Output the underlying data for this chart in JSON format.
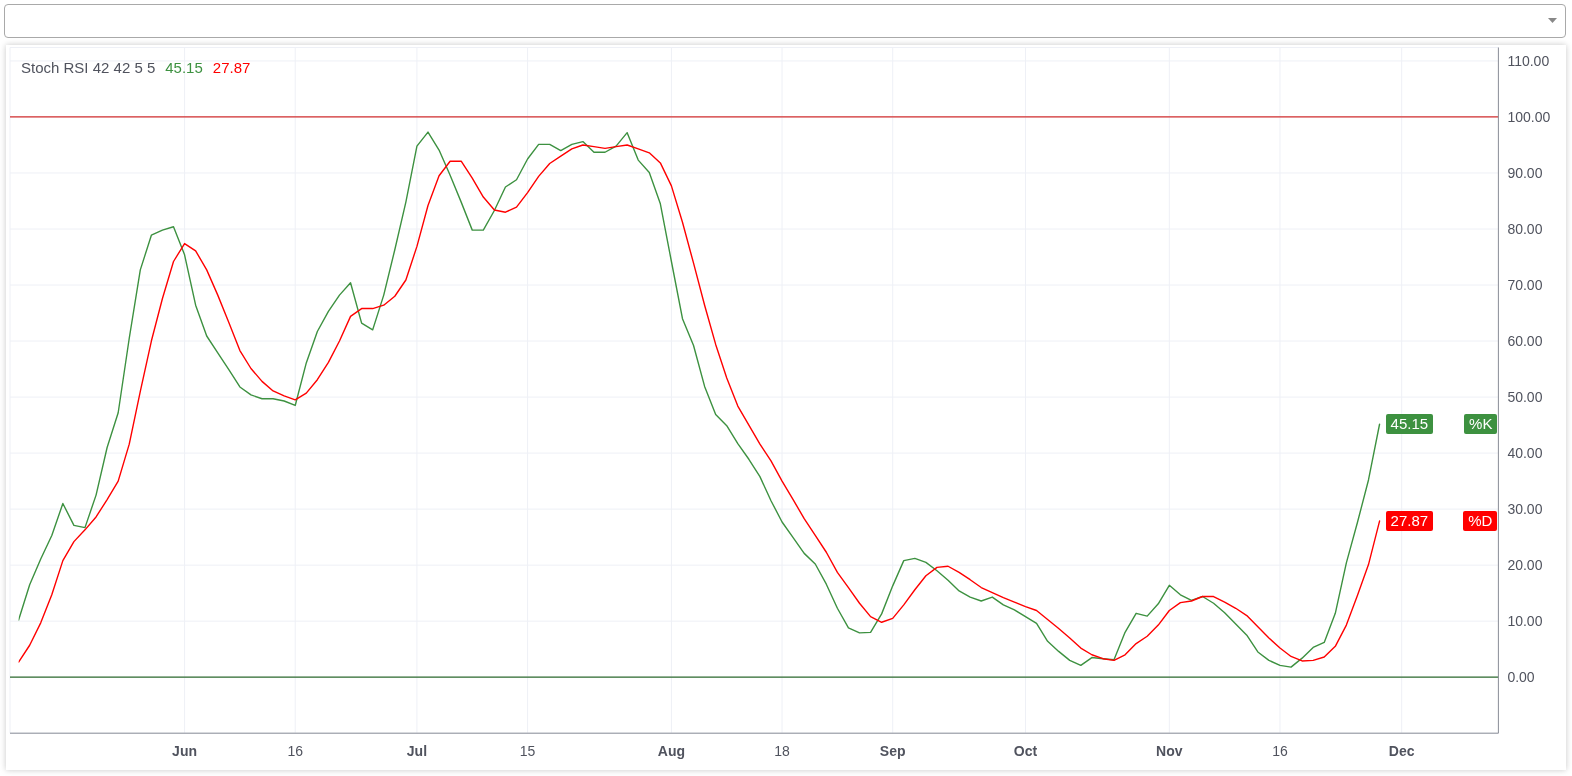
{
  "chart_data": {
    "type": "line",
    "title": "Stoch RSI 42 42 5 5",
    "categories": [
      null,
      null,
      null,
      null,
      null,
      null,
      null,
      null,
      null,
      null,
      null,
      null,
      null,
      null,
      null,
      "Jun",
      null,
      null,
      null,
      null,
      null,
      null,
      null,
      null,
      null,
      "16",
      null,
      null,
      null,
      null,
      null,
      null,
      null,
      null,
      null,
      null,
      "Jul",
      null,
      null,
      null,
      null,
      null,
      null,
      null,
      null,
      null,
      "15",
      null,
      null,
      null,
      null,
      null,
      null,
      null,
      null,
      null,
      null,
      null,
      null,
      "Aug",
      null,
      null,
      null,
      null,
      null,
      null,
      null,
      null,
      null,
      "18",
      null,
      null,
      null,
      null,
      null,
      null,
      null,
      null,
      null,
      "Sep",
      null,
      null,
      null,
      null,
      null,
      null,
      null,
      null,
      null,
      null,
      null,
      "Oct",
      null,
      null,
      null,
      null,
      null,
      null,
      null,
      null,
      null,
      null,
      null,
      null,
      "Nov",
      null,
      null,
      null,
      null,
      null,
      null,
      null,
      null,
      null,
      "16",
      null,
      null,
      null,
      null,
      null,
      null,
      null,
      null,
      null,
      null,
      "Dec",
      null,
      null,
      null,
      null,
      null,
      null,
      null,
      null
    ],
    "series": [
      {
        "name": "%K",
        "color": "#3d9140",
        "values": [
          10.2,
          16.5,
          21.1,
          25.3,
          31.0,
          27.1,
          26.7,
          32.5,
          41.0,
          47.2,
          60.5,
          72.7,
          78.9,
          79.8,
          80.4,
          75.4,
          66.4,
          60.9,
          57.9,
          54.9,
          51.8,
          50.4,
          49.7,
          49.7,
          49.3,
          48.5,
          56.1,
          61.7,
          65.3,
          68.2,
          70.4,
          63.2,
          62.0,
          68.2,
          76.3,
          84.8,
          94.8,
          97.3,
          94.1,
          89.6,
          84.8,
          79.8,
          79.8,
          83.3,
          87.5,
          88.8,
          92.5,
          95.1,
          95.1,
          94.0,
          95.1,
          95.6,
          93.7,
          93.7,
          94.8,
          97.2,
          92.3,
          90.1,
          84.5,
          74.2,
          64.0,
          59.2,
          51.9,
          46.9,
          44.9,
          41.7,
          38.9,
          35.8,
          31.5,
          27.7,
          24.9,
          22.1,
          20.2,
          16.6,
          12.3,
          8.8,
          7.9,
          8.0,
          11.3,
          16.3,
          20.8,
          21.2,
          20.5,
          19.0,
          17.3,
          15.4,
          14.3,
          13.6,
          14.3,
          12.9,
          12.0,
          10.8,
          9.6,
          6.4,
          4.6,
          3.0,
          2.1,
          3.5,
          3.3,
          3.1,
          8.0,
          11.4,
          10.9,
          13.1,
          16.4,
          14.7,
          13.7,
          14.4,
          13.2,
          11.5,
          9.5,
          7.5,
          4.5,
          3.0,
          2.1,
          1.8,
          3.4,
          5.3,
          6.2,
          11.4,
          20.4,
          27.6,
          35.2,
          45.15,
          null,
          null,
          null,
          null,
          null,
          null,
          null,
          null,
          null,
          null
        ],
        "value_labels": [
          null,
          null,
          null,
          null,
          null,
          null,
          null,
          null,
          null,
          null,
          null,
          null,
          null,
          null,
          null,
          null,
          null,
          null,
          null,
          null,
          null,
          null,
          null,
          null,
          null,
          null,
          null,
          null,
          null,
          null,
          null,
          null,
          null,
          null,
          null,
          null,
          null,
          null,
          null,
          null,
          null,
          null,
          null,
          null,
          null,
          null,
          null,
          null,
          null,
          null,
          null,
          null,
          null,
          null,
          null,
          null,
          null,
          null,
          null,
          null,
          null,
          null,
          null,
          null,
          null,
          null,
          null,
          null,
          null,
          null,
          null,
          null,
          null,
          null,
          null,
          null,
          null,
          null,
          null,
          null,
          null,
          null,
          null,
          null,
          null,
          null,
          null,
          null,
          null,
          null,
          null,
          null,
          null,
          null,
          null,
          null,
          null,
          null,
          null,
          null,
          null,
          null,
          null,
          null,
          null,
          null,
          null,
          null,
          null,
          null,
          null,
          null,
          null,
          null,
          null,
          null,
          null,
          null,
          null,
          null,
          null,
          null,
          null,
          "45.15",
          null,
          null,
          null,
          null,
          null,
          null,
          null,
          null,
          null,
          null
        ]
      },
      {
        "name": "%D",
        "color": "#ff0000",
        "values": [
          2.7,
          5.7,
          9.7,
          14.7,
          20.8,
          24.2,
          26.3,
          28.6,
          31.7,
          35.0,
          41.6,
          51.0,
          60.0,
          67.6,
          74.2,
          77.4,
          76.1,
          72.7,
          68.2,
          63.3,
          58.3,
          55.1,
          52.8,
          51.1,
          50.2,
          49.5,
          50.7,
          53.1,
          56.2,
          60.0,
          64.4,
          65.8,
          65.8,
          66.4,
          68.0,
          70.9,
          76.9,
          84.2,
          89.5,
          92.1,
          92.1,
          89.1,
          85.7,
          83.4,
          83.0,
          83.9,
          86.5,
          89.4,
          91.7,
          93.0,
          94.3,
          95.0,
          94.7,
          94.4,
          94.7,
          95.0,
          94.3,
          93.6,
          91.8,
          87.7,
          81.2,
          73.9,
          66.4,
          59.4,
          53.4,
          48.4,
          45.0,
          41.6,
          38.6,
          35.0,
          31.7,
          28.3,
          25.3,
          22.3,
          18.7,
          16.0,
          13.2,
          10.8,
          9.8,
          10.5,
          12.9,
          15.6,
          18.1,
          19.6,
          19.8,
          18.7,
          17.4,
          16.0,
          15.1,
          14.2,
          13.4,
          12.6,
          11.9,
          10.3,
          8.7,
          7.0,
          5.2,
          4.0,
          3.3,
          3.0,
          4.0,
          6.0,
          7.3,
          9.3,
          11.9,
          13.3,
          13.6,
          14.4,
          14.4,
          13.4,
          12.3,
          11.0,
          9.0,
          7.0,
          5.2,
          3.7,
          2.9,
          3.0,
          3.6,
          5.5,
          9.3,
          14.6,
          20.1,
          27.87,
          null,
          null,
          null,
          null,
          null,
          null,
          null,
          null,
          null,
          null
        ],
        "value_labels": [
          null,
          null,
          null,
          null,
          null,
          null,
          null,
          null,
          null,
          null,
          null,
          null,
          null,
          null,
          null,
          null,
          null,
          null,
          null,
          null,
          null,
          null,
          null,
          null,
          null,
          null,
          null,
          null,
          null,
          null,
          null,
          null,
          null,
          null,
          null,
          null,
          null,
          null,
          null,
          null,
          null,
          null,
          null,
          null,
          null,
          null,
          null,
          null,
          null,
          null,
          null,
          null,
          null,
          null,
          null,
          null,
          null,
          null,
          null,
          null,
          null,
          null,
          null,
          null,
          null,
          null,
          null,
          null,
          null,
          null,
          null,
          null,
          null,
          null,
          null,
          null,
          null,
          null,
          null,
          null,
          null,
          null,
          null,
          null,
          null,
          null,
          null,
          null,
          null,
          null,
          null,
          null,
          null,
          null,
          null,
          null,
          null,
          null,
          null,
          null,
          null,
          null,
          null,
          null,
          null,
          null,
          null,
          null,
          null,
          null,
          null,
          null,
          null,
          null,
          null,
          null,
          null,
          null,
          null,
          null,
          null,
          null,
          null,
          "27.87",
          null,
          null,
          null,
          null,
          null,
          null,
          null,
          null,
          null,
          null
        ]
      }
    ],
    "ylim": [
      -10,
      112.4
    ],
    "yticks": [
      {
        "value": 0,
        "label": "0.00"
      },
      {
        "value": 10,
        "label": "10.00"
      },
      {
        "value": 20,
        "label": "20.00"
      },
      {
        "value": 30,
        "label": "30.00"
      },
      {
        "value": 40,
        "label": "40.00"
      },
      {
        "value": 50,
        "label": "50.00"
      },
      {
        "value": 60,
        "label": "60.00"
      },
      {
        "value": 70,
        "label": "70.00"
      },
      {
        "value": 80,
        "label": "80.00"
      },
      {
        "value": 90,
        "label": "90.00"
      },
      {
        "value": 100,
        "label": "100.00"
      },
      {
        "value": 110,
        "label": "110.00"
      }
    ],
    "grid": true,
    "legend": "right",
    "ref_lines": [
      {
        "axis": "y",
        "value": 100,
        "color": "#d32f2f"
      },
      {
        "axis": "y",
        "value": 0,
        "color": "#2e6b2e"
      }
    ]
  }
}
